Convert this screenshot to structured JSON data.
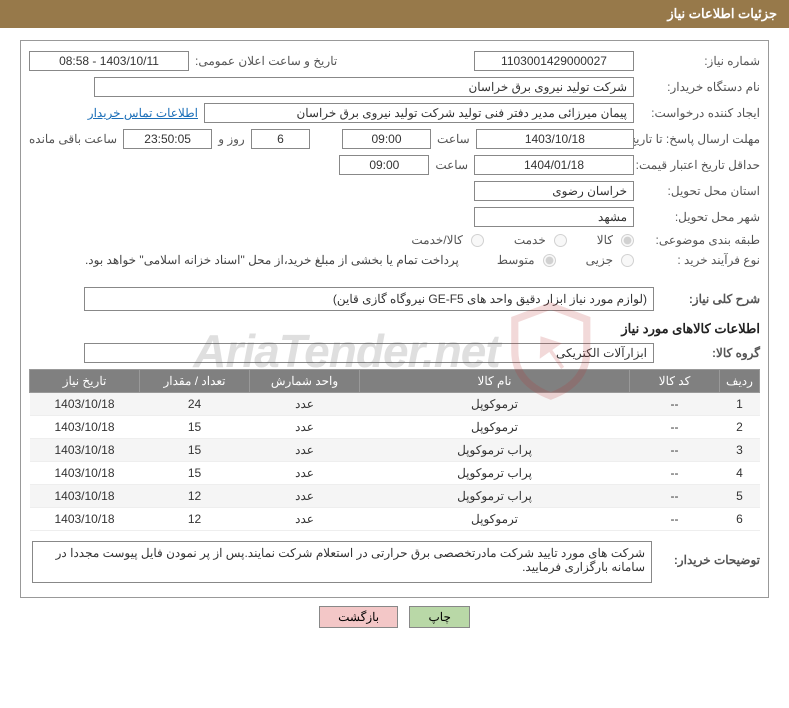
{
  "header": {
    "title": "جزئیات اطلاعات نیاز"
  },
  "fields": {
    "need_no_label": "شماره نیاز:",
    "need_no": "1103001429000027",
    "announce_label": "تاریخ و ساعت اعلان عمومی:",
    "announce_value": "1403/10/11 - 08:58",
    "buyer_org_label": "نام دستگاه خریدار:",
    "buyer_org": "شرکت تولید نیروی برق خراسان",
    "requester_label": "ایجاد کننده درخواست:",
    "requester": "پیمان میرزائی مدیر دفتر فنی تولید شرکت تولید نیروی برق خراسان",
    "contact_link": "اطلاعات تماس خریدار",
    "deadline_label": "مهلت ارسال پاسخ: تا تاریخ:",
    "deadline_date": "1403/10/18",
    "time_label": "ساعت",
    "deadline_time": "09:00",
    "days_value": "6",
    "days_and": "روز و",
    "countdown": "23:50:05",
    "remaining_label": "ساعت باقی مانده",
    "validity_label": "حداقل تاریخ اعتبار قیمت: تا تاریخ:",
    "validity_date": "1404/01/18",
    "validity_time": "09:00",
    "province_label": "استان محل تحویل:",
    "province": "خراسان رضوی",
    "city_label": "شهر محل تحویل:",
    "city": "مشهد",
    "category_label": "طبقه بندی موضوعی:",
    "cat1": "کالا",
    "cat2": "خدمت",
    "cat3": "کالا/خدمت",
    "process_label": "نوع فرآیند خرید :",
    "proc1": "جزیی",
    "proc2": "متوسط",
    "payment_note": "پرداخت تمام یا بخشی از مبلغ خرید،از محل \"اسناد خزانه اسلامی\" خواهد بود.",
    "general_desc_label": "شرح کلی نیاز:",
    "general_desc": "(لوازم مورد نیاز ابزار دقیق واحد های GE-F5 نیروگاه گازی قاین)",
    "goods_section": "اطلاعات کالاهای مورد نیاز",
    "group_label": "گروه کالا:",
    "group_value": "ابزارآلات الکتریکی",
    "buyer_notes_label": "توضیحات خریدار:",
    "buyer_notes": "شرکت های مورد تایید شرکت مادرتخصصی برق حرارتی در استعلام شرکت نمایند.پس از پر نمودن فایل پیوست مجددا در سامانه بارگزاری فرمایید."
  },
  "table": {
    "headers": [
      "ردیف",
      "کد کالا",
      "نام کالا",
      "واحد شمارش",
      "تعداد / مقدار",
      "تاریخ نیاز"
    ],
    "col_widths": [
      "40px",
      "90px",
      "auto",
      "110px",
      "110px",
      "110px"
    ],
    "rows": [
      [
        "1",
        "--",
        "ترموکوپل",
        "عدد",
        "24",
        "1403/10/18"
      ],
      [
        "2",
        "--",
        "ترموکوپل",
        "عدد",
        "15",
        "1403/10/18"
      ],
      [
        "3",
        "--",
        "پراب ترموکوپل",
        "عدد",
        "15",
        "1403/10/18"
      ],
      [
        "4",
        "--",
        "پراب ترموکوپل",
        "عدد",
        "15",
        "1403/10/18"
      ],
      [
        "5",
        "--",
        "پراب ترموکوپل",
        "عدد",
        "12",
        "1403/10/18"
      ],
      [
        "6",
        "--",
        "ترموکوپل",
        "عدد",
        "12",
        "1403/10/18"
      ]
    ]
  },
  "buttons": {
    "print": "چاپ",
    "back": "بازگشت"
  },
  "watermark": {
    "text": "AriaTender.net"
  },
  "colors": {
    "header_bg": "#97794a",
    "th_bg": "#808080",
    "link": "#1a6eb8",
    "btn_print": "#b9d8a7",
    "btn_back": "#f3c7c7"
  }
}
